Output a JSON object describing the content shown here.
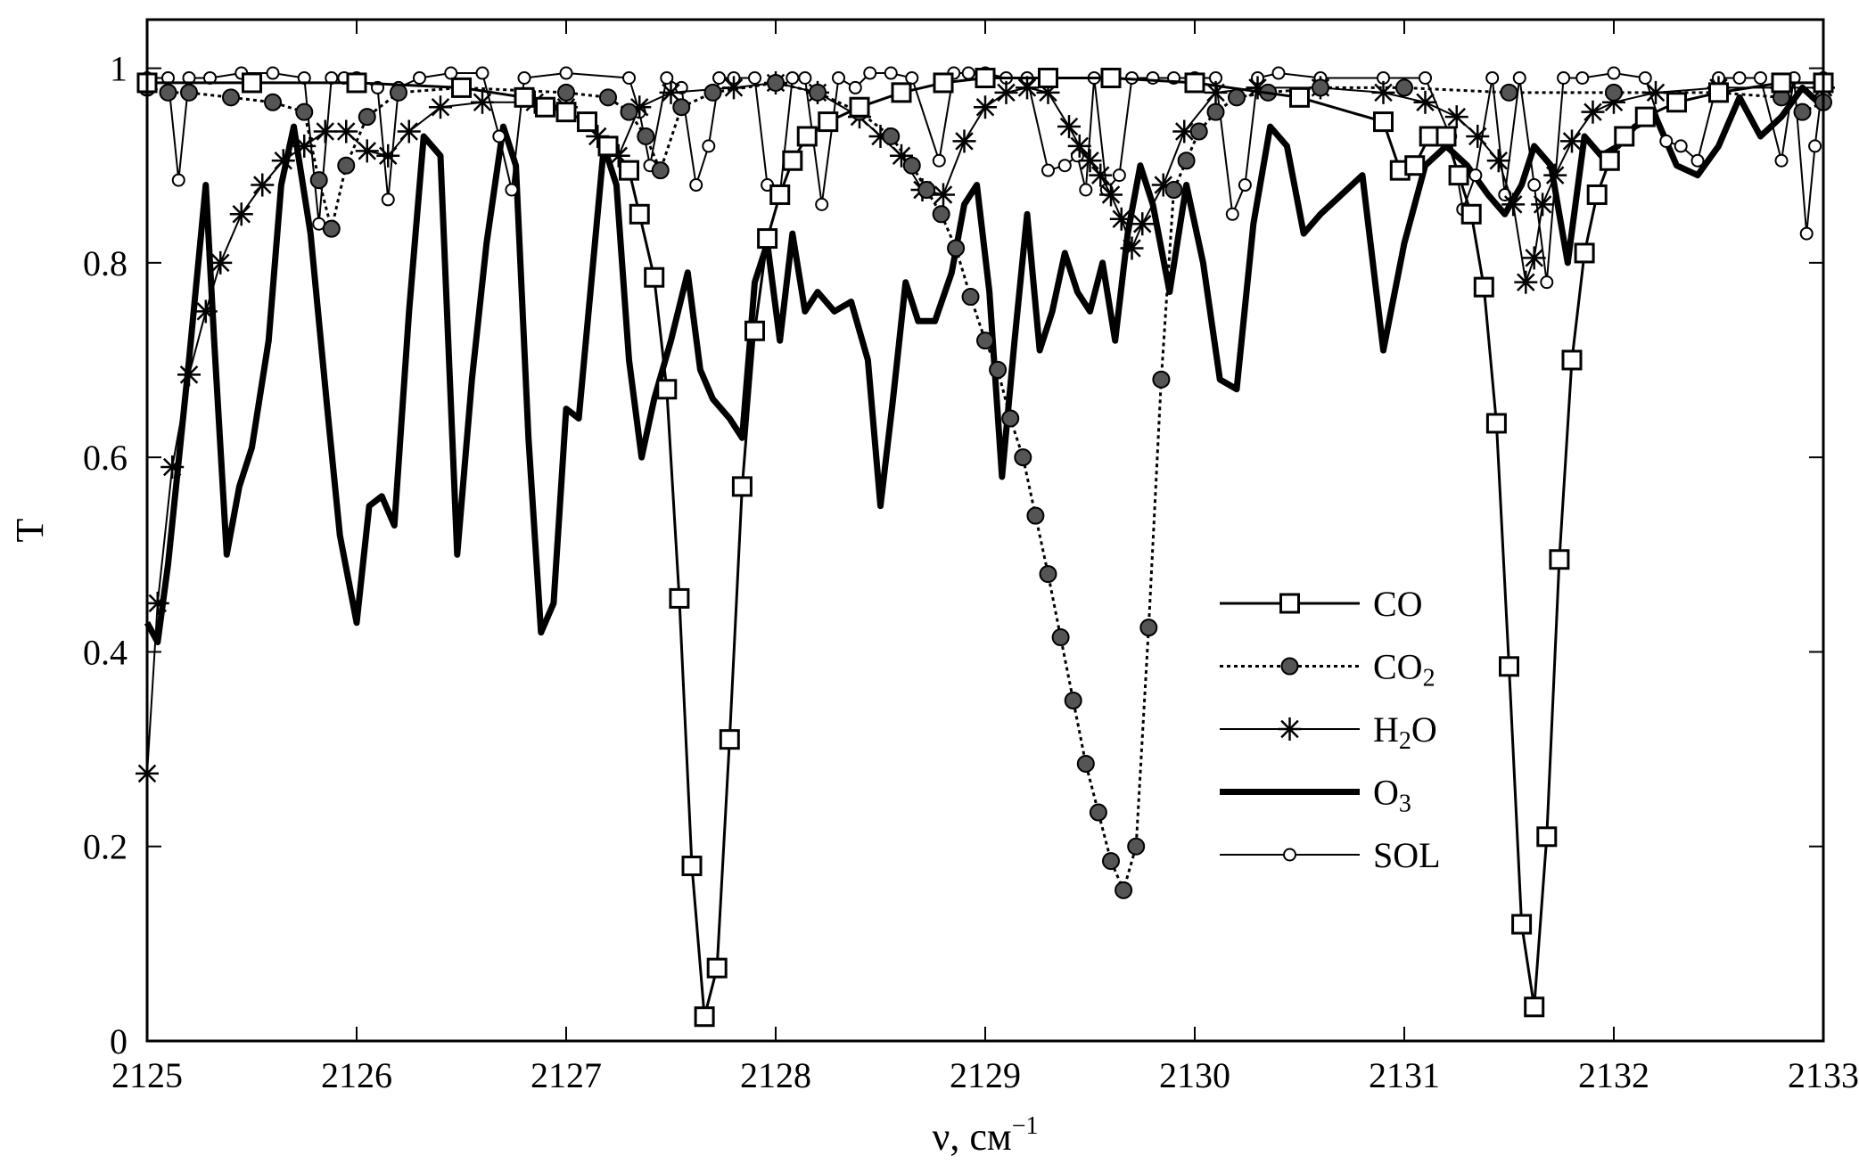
{
  "chart_data": {
    "type": "line",
    "xlabel": "ν, см",
    "xlabel_sup": "−1",
    "ylabel": "T",
    "xlim": [
      2125,
      2133
    ],
    "ylim": [
      0,
      1.05
    ],
    "x_ticks": [
      2125,
      2126,
      2127,
      2128,
      2129,
      2130,
      2131,
      2132,
      2133
    ],
    "x_tick_labels": [
      "2125",
      "2126",
      "2127",
      "2128",
      "2129",
      "2130",
      "2131",
      "2132",
      "2133"
    ],
    "y_ticks": [
      0,
      0.2,
      0.4,
      0.6,
      0.8,
      1
    ],
    "y_tick_labels": [
      "0",
      "0.2",
      "0.4",
      "0.6",
      "0.8",
      "1"
    ],
    "grid": false,
    "legend_position": "center-right",
    "legend": [
      {
        "key": "CO",
        "label": "CO",
        "sub": ""
      },
      {
        "key": "CO2",
        "label": "CO",
        "sub": "2"
      },
      {
        "key": "H2O",
        "label": "H",
        "sub": "2",
        "suffix": "O"
      },
      {
        "key": "O3",
        "label": "O",
        "sub": "3"
      },
      {
        "key": "SOL",
        "label": "SOL",
        "sub": ""
      }
    ],
    "series": [
      {
        "key": "CO",
        "marker": "square",
        "line": "solid",
        "stroke_width": 3,
        "x": [
          2125.0,
          2125.5,
          2126.0,
          2126.5,
          2126.8,
          2126.9,
          2127.0,
          2127.1,
          2127.2,
          2127.3,
          2127.35,
          2127.42,
          2127.48,
          2127.54,
          2127.6,
          2127.66,
          2127.72,
          2127.78,
          2127.84,
          2127.9,
          2127.96,
          2128.02,
          2128.08,
          2128.15,
          2128.25,
          2128.4,
          2128.6,
          2128.8,
          2129.0,
          2129.3,
          2129.6,
          2130.0,
          2130.5,
          2130.9,
          2130.98,
          2131.05,
          2131.12,
          2131.2,
          2131.26,
          2131.32,
          2131.38,
          2131.44,
          2131.5,
          2131.56,
          2131.62,
          2131.68,
          2131.74,
          2131.8,
          2131.86,
          2131.92,
          2131.98,
          2132.05,
          2132.15,
          2132.3,
          2132.5,
          2132.8,
          2133.0
        ],
        "y": [
          0.985,
          0.985,
          0.985,
          0.98,
          0.97,
          0.96,
          0.955,
          0.945,
          0.92,
          0.895,
          0.85,
          0.785,
          0.67,
          0.455,
          0.18,
          0.025,
          0.075,
          0.31,
          0.57,
          0.73,
          0.825,
          0.87,
          0.905,
          0.93,
          0.945,
          0.96,
          0.975,
          0.985,
          0.99,
          0.99,
          0.99,
          0.985,
          0.97,
          0.945,
          0.895,
          0.9,
          0.93,
          0.93,
          0.89,
          0.85,
          0.775,
          0.635,
          0.385,
          0.12,
          0.035,
          0.21,
          0.495,
          0.7,
          0.81,
          0.87,
          0.905,
          0.93,
          0.95,
          0.965,
          0.975,
          0.985,
          0.985
        ]
      },
      {
        "key": "CO2",
        "marker": "filled-circle",
        "line": "dotted",
        "stroke_width": 3,
        "x": [
          2125.0,
          2125.1,
          2125.2,
          2125.4,
          2125.6,
          2125.75,
          2125.82,
          2125.88,
          2125.95,
          2126.05,
          2126.2,
          2126.5,
          2127.0,
          2127.2,
          2127.3,
          2127.38,
          2127.45,
          2127.55,
          2127.7,
          2128.0,
          2128.2,
          2128.4,
          2128.55,
          2128.65,
          2128.72,
          2128.79,
          2128.86,
          2128.93,
          2129.0,
          2129.06,
          2129.12,
          2129.18,
          2129.24,
          2129.3,
          2129.36,
          2129.42,
          2129.48,
          2129.54,
          2129.6,
          2129.66,
          2129.72,
          2129.78,
          2129.84,
          2129.9,
          2129.96,
          2130.02,
          2130.1,
          2130.2,
          2130.35,
          2130.6,
          2131.0,
          2131.5,
          2132.0,
          2132.5,
          2132.8,
          2132.9,
          2133.0
        ],
        "y": [
          0.98,
          0.975,
          0.975,
          0.97,
          0.965,
          0.955,
          0.885,
          0.835,
          0.9,
          0.95,
          0.975,
          0.98,
          0.975,
          0.97,
          0.955,
          0.93,
          0.895,
          0.96,
          0.975,
          0.985,
          0.975,
          0.955,
          0.93,
          0.9,
          0.875,
          0.85,
          0.815,
          0.765,
          0.72,
          0.69,
          0.64,
          0.6,
          0.54,
          0.48,
          0.415,
          0.35,
          0.285,
          0.235,
          0.185,
          0.155,
          0.2,
          0.425,
          0.68,
          0.875,
          0.905,
          0.935,
          0.955,
          0.97,
          0.975,
          0.98,
          0.98,
          0.975,
          0.975,
          0.975,
          0.97,
          0.955,
          0.965
        ]
      },
      {
        "key": "H2O",
        "marker": "asterisk",
        "line": "solid",
        "stroke_width": 2,
        "x": [
          2125.0,
          2125.05,
          2125.12,
          2125.2,
          2125.28,
          2125.35,
          2125.45,
          2125.55,
          2125.65,
          2125.75,
          2125.85,
          2125.95,
          2126.05,
          2126.15,
          2126.25,
          2126.4,
          2126.6,
          2126.85,
          2127.0,
          2127.15,
          2127.25,
          2127.35,
          2127.5,
          2127.8,
          2128.0,
          2128.2,
          2128.4,
          2128.5,
          2128.6,
          2128.7,
          2128.8,
          2128.9,
          2129.0,
          2129.1,
          2129.2,
          2129.3,
          2129.4,
          2129.45,
          2129.5,
          2129.55,
          2129.6,
          2129.65,
          2129.7,
          2129.75,
          2129.85,
          2129.95,
          2130.1,
          2130.3,
          2130.6,
          2130.9,
          2131.1,
          2131.25,
          2131.35,
          2131.45,
          2131.52,
          2131.58,
          2131.62,
          2131.66,
          2131.72,
          2131.8,
          2131.9,
          2132.0,
          2132.2,
          2132.5,
          2132.8,
          2133.0
        ],
        "y": [
          0.275,
          0.45,
          0.59,
          0.685,
          0.75,
          0.8,
          0.85,
          0.88,
          0.905,
          0.92,
          0.935,
          0.935,
          0.915,
          0.91,
          0.935,
          0.96,
          0.965,
          0.965,
          0.96,
          0.93,
          0.91,
          0.96,
          0.975,
          0.98,
          0.985,
          0.975,
          0.95,
          0.93,
          0.91,
          0.875,
          0.87,
          0.925,
          0.96,
          0.975,
          0.98,
          0.975,
          0.94,
          0.92,
          0.905,
          0.89,
          0.87,
          0.845,
          0.815,
          0.84,
          0.88,
          0.935,
          0.975,
          0.98,
          0.98,
          0.975,
          0.965,
          0.95,
          0.93,
          0.905,
          0.86,
          0.78,
          0.805,
          0.86,
          0.89,
          0.925,
          0.955,
          0.965,
          0.975,
          0.98,
          0.98,
          0.98
        ]
      },
      {
        "key": "O3",
        "marker": "none",
        "line": "solid",
        "stroke_width": 7,
        "x": [
          2125.0,
          2125.05,
          2125.1,
          2125.2,
          2125.28,
          2125.32,
          2125.38,
          2125.44,
          2125.5,
          2125.58,
          2125.64,
          2125.7,
          2125.78,
          2125.86,
          2125.92,
          2126.0,
          2126.06,
          2126.12,
          2126.18,
          2126.25,
          2126.32,
          2126.4,
          2126.48,
          2126.55,
          2126.62,
          2126.7,
          2126.76,
          2126.82,
          2126.88,
          2126.94,
          2127.0,
          2127.06,
          2127.12,
          2127.18,
          2127.24,
          2127.3,
          2127.36,
          2127.42,
          2127.5,
          2127.58,
          2127.64,
          2127.7,
          2127.78,
          2127.84,
          2127.9,
          2127.96,
          2128.02,
          2128.08,
          2128.14,
          2128.2,
          2128.28,
          2128.36,
          2128.44,
          2128.5,
          2128.56,
          2128.62,
          2128.68,
          2128.76,
          2128.84,
          2128.9,
          2128.96,
          2129.02,
          2129.08,
          2129.14,
          2129.2,
          2129.26,
          2129.32,
          2129.38,
          2129.44,
          2129.5,
          2129.56,
          2129.62,
          2129.68,
          2129.74,
          2129.8,
          2129.88,
          2129.96,
          2130.04,
          2130.12,
          2130.2,
          2130.28,
          2130.36,
          2130.44,
          2130.52,
          2130.6,
          2130.7,
          2130.8,
          2130.9,
          2131.0,
          2131.1,
          2131.2,
          2131.3,
          2131.4,
          2131.48,
          2131.56,
          2131.62,
          2131.7,
          2131.78,
          2131.86,
          2131.94,
          2132.02,
          2132.1,
          2132.2,
          2132.3,
          2132.4,
          2132.5,
          2132.6,
          2132.7,
          2132.8,
          2132.9,
          2133.0
        ],
        "y": [
          0.43,
          0.41,
          0.49,
          0.7,
          0.88,
          0.72,
          0.5,
          0.57,
          0.61,
          0.72,
          0.88,
          0.94,
          0.83,
          0.65,
          0.52,
          0.43,
          0.55,
          0.56,
          0.53,
          0.75,
          0.93,
          0.91,
          0.5,
          0.68,
          0.82,
          0.94,
          0.9,
          0.62,
          0.42,
          0.45,
          0.65,
          0.64,
          0.78,
          0.92,
          0.88,
          0.7,
          0.6,
          0.66,
          0.72,
          0.79,
          0.69,
          0.66,
          0.64,
          0.62,
          0.78,
          0.82,
          0.72,
          0.83,
          0.75,
          0.77,
          0.75,
          0.76,
          0.7,
          0.55,
          0.66,
          0.78,
          0.74,
          0.74,
          0.79,
          0.86,
          0.88,
          0.77,
          0.58,
          0.72,
          0.85,
          0.71,
          0.75,
          0.81,
          0.77,
          0.75,
          0.8,
          0.72,
          0.83,
          0.9,
          0.86,
          0.77,
          0.88,
          0.8,
          0.68,
          0.67,
          0.84,
          0.94,
          0.92,
          0.83,
          0.85,
          0.87,
          0.89,
          0.71,
          0.82,
          0.9,
          0.92,
          0.9,
          0.87,
          0.85,
          0.88,
          0.92,
          0.9,
          0.8,
          0.93,
          0.91,
          0.92,
          0.94,
          0.95,
          0.9,
          0.89,
          0.92,
          0.97,
          0.93,
          0.95,
          0.98,
          0.96
        ]
      },
      {
        "key": "SOL",
        "marker": "open-circle",
        "line": "solid",
        "stroke_width": 2,
        "x": [
          2125.0,
          2125.1,
          2125.15,
          2125.2,
          2125.3,
          2125.45,
          2125.6,
          2125.75,
          2125.82,
          2125.88,
          2125.94,
          2126.0,
          2126.1,
          2126.15,
          2126.2,
          2126.3,
          2126.45,
          2126.6,
          2126.68,
          2126.74,
          2126.8,
          2127.0,
          2127.3,
          2127.35,
          2127.4,
          2127.48,
          2127.55,
          2127.62,
          2127.68,
          2127.73,
          2127.8,
          2127.9,
          2127.96,
          2128.02,
          2128.08,
          2128.14,
          2128.22,
          2128.3,
          2128.38,
          2128.45,
          2128.55,
          2128.65,
          2128.78,
          2128.85,
          2128.92,
          2129.0,
          2129.1,
          2129.2,
          2129.3,
          2129.38,
          2129.44,
          2129.48,
          2129.52,
          2129.58,
          2129.64,
          2129.7,
          2129.8,
          2129.9,
          2130.0,
          2130.1,
          2130.18,
          2130.24,
          2130.3,
          2130.4,
          2130.6,
          2130.9,
          2131.1,
          2131.22,
          2131.28,
          2131.34,
          2131.42,
          2131.48,
          2131.55,
          2131.62,
          2131.68,
          2131.76,
          2131.85,
          2132.0,
          2132.15,
          2132.25,
          2132.32,
          2132.4,
          2132.5,
          2132.6,
          2132.7,
          2132.8,
          2132.86,
          2132.92,
          2132.96,
          2133.0
        ],
        "y": [
          0.99,
          0.99,
          0.885,
          0.99,
          0.99,
          0.995,
          0.995,
          0.99,
          0.84,
          0.99,
          0.99,
          0.99,
          0.98,
          0.865,
          0.98,
          0.99,
          0.995,
          0.995,
          0.93,
          0.875,
          0.99,
          0.995,
          0.99,
          0.955,
          0.9,
          0.99,
          0.98,
          0.88,
          0.92,
          0.99,
          0.99,
          0.99,
          0.88,
          0.87,
          0.99,
          0.99,
          0.86,
          0.99,
          0.98,
          0.995,
          0.995,
          0.99,
          0.905,
          0.995,
          0.995,
          0.995,
          0.99,
          0.99,
          0.895,
          0.9,
          0.91,
          0.875,
          0.99,
          0.875,
          0.89,
          0.99,
          0.99,
          0.99,
          0.99,
          0.99,
          0.85,
          0.88,
          0.99,
          0.995,
          0.99,
          0.99,
          0.99,
          0.93,
          0.855,
          0.89,
          0.99,
          0.87,
          0.99,
          0.88,
          0.78,
          0.99,
          0.99,
          0.995,
          0.99,
          0.925,
          0.92,
          0.905,
          0.99,
          0.99,
          0.99,
          0.905,
          0.99,
          0.83,
          0.92,
          0.99
        ]
      }
    ]
  }
}
